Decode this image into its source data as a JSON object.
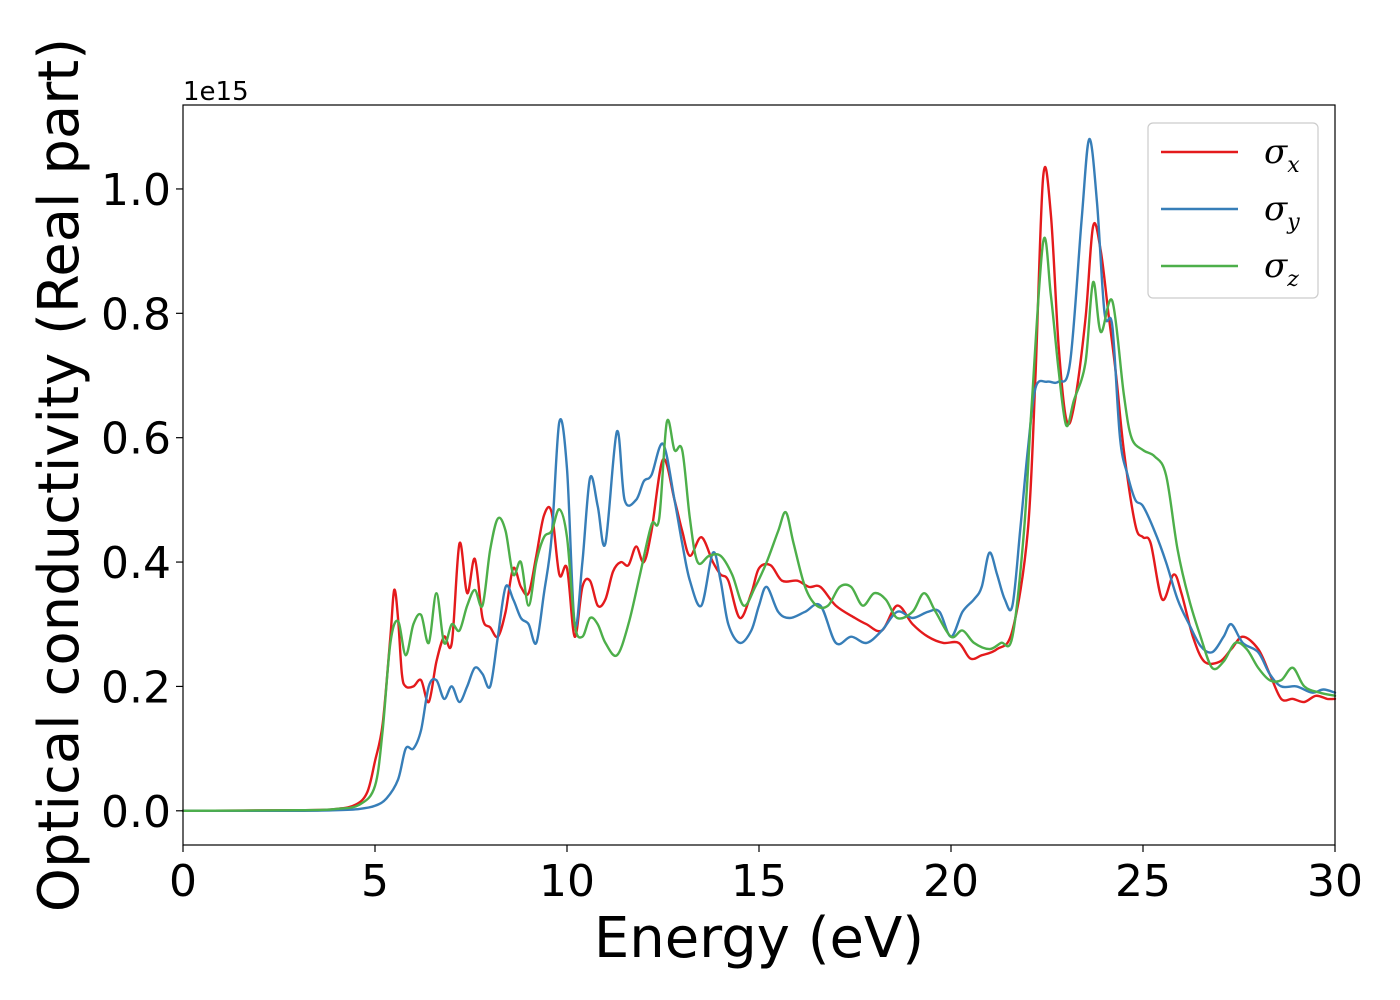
{
  "chart_data": {
    "type": "line",
    "title": "",
    "xlabel": "Energy (eV)",
    "ylabel": "Optical conductivity (Real part)",
    "offset_text": "1e15",
    "xlim": [
      0,
      30
    ],
    "ylim": [
      -0.055,
      1.135
    ],
    "xticks": [
      0,
      5,
      10,
      15,
      20,
      25,
      30
    ],
    "xtick_labels": [
      "0",
      "5",
      "10",
      "15",
      "20",
      "25",
      "30"
    ],
    "yticks": [
      0.0,
      0.2,
      0.4,
      0.6,
      0.8,
      1.0
    ],
    "ytick_labels": [
      "0.0",
      "0.2",
      "0.4",
      "0.6",
      "0.8",
      "1.0"
    ],
    "grid": false,
    "legend_position": "top-right",
    "series": [
      {
        "name": "σx",
        "symbol": "σ",
        "subscript": "x",
        "color": "#e41a1c",
        "points": [
          [
            0,
            0
          ],
          [
            3,
            0.001
          ],
          [
            4,
            0.003
          ],
          [
            4.5,
            0.01
          ],
          [
            4.8,
            0.03
          ],
          [
            5,
            0.08
          ],
          [
            5.2,
            0.14
          ],
          [
            5.4,
            0.28
          ],
          [
            5.5,
            0.355
          ],
          [
            5.6,
            0.31
          ],
          [
            5.7,
            0.22
          ],
          [
            5.8,
            0.2
          ],
          [
            6,
            0.2
          ],
          [
            6.2,
            0.21
          ],
          [
            6.4,
            0.175
          ],
          [
            6.6,
            0.24
          ],
          [
            6.8,
            0.28
          ],
          [
            7,
            0.27
          ],
          [
            7.2,
            0.43
          ],
          [
            7.4,
            0.35
          ],
          [
            7.6,
            0.405
          ],
          [
            7.8,
            0.31
          ],
          [
            8,
            0.295
          ],
          [
            8.2,
            0.28
          ],
          [
            8.4,
            0.32
          ],
          [
            8.6,
            0.39
          ],
          [
            8.8,
            0.36
          ],
          [
            9,
            0.35
          ],
          [
            9.2,
            0.41
          ],
          [
            9.4,
            0.475
          ],
          [
            9.6,
            0.48
          ],
          [
            9.8,
            0.38
          ],
          [
            10,
            0.39
          ],
          [
            10.2,
            0.28
          ],
          [
            10.4,
            0.36
          ],
          [
            10.6,
            0.37
          ],
          [
            10.8,
            0.33
          ],
          [
            11,
            0.34
          ],
          [
            11.2,
            0.385
          ],
          [
            11.4,
            0.4
          ],
          [
            11.6,
            0.395
          ],
          [
            11.8,
            0.425
          ],
          [
            12,
            0.4
          ],
          [
            12.2,
            0.45
          ],
          [
            12.5,
            0.565
          ],
          [
            12.8,
            0.5
          ],
          [
            13,
            0.45
          ],
          [
            13.2,
            0.41
          ],
          [
            13.5,
            0.44
          ],
          [
            13.8,
            0.4
          ],
          [
            14,
            0.38
          ],
          [
            14.2,
            0.37
          ],
          [
            14.5,
            0.31
          ],
          [
            14.8,
            0.35
          ],
          [
            15,
            0.39
          ],
          [
            15.3,
            0.395
          ],
          [
            15.6,
            0.37
          ],
          [
            16,
            0.37
          ],
          [
            16.3,
            0.36
          ],
          [
            16.6,
            0.36
          ],
          [
            17,
            0.33
          ],
          [
            17.5,
            0.31
          ],
          [
            17.8,
            0.3
          ],
          [
            18.2,
            0.29
          ],
          [
            18.6,
            0.33
          ],
          [
            19,
            0.3
          ],
          [
            19.4,
            0.28
          ],
          [
            19.8,
            0.27
          ],
          [
            20.2,
            0.27
          ],
          [
            20.5,
            0.245
          ],
          [
            20.8,
            0.25
          ],
          [
            21.2,
            0.26
          ],
          [
            21.6,
            0.29
          ],
          [
            22,
            0.45
          ],
          [
            22.2,
            0.7
          ],
          [
            22.4,
            1.02
          ],
          [
            22.6,
            0.96
          ],
          [
            22.8,
            0.75
          ],
          [
            23,
            0.63
          ],
          [
            23.2,
            0.65
          ],
          [
            23.5,
            0.79
          ],
          [
            23.7,
            0.94
          ],
          [
            23.9,
            0.9
          ],
          [
            24.1,
            0.8
          ],
          [
            24.3,
            0.7
          ],
          [
            24.5,
            0.58
          ],
          [
            24.8,
            0.46
          ],
          [
            25,
            0.44
          ],
          [
            25.2,
            0.43
          ],
          [
            25.5,
            0.34
          ],
          [
            25.8,
            0.38
          ],
          [
            26,
            0.35
          ],
          [
            26.3,
            0.28
          ],
          [
            26.6,
            0.24
          ],
          [
            27,
            0.24
          ],
          [
            27.3,
            0.26
          ],
          [
            27.6,
            0.28
          ],
          [
            28,
            0.26
          ],
          [
            28.3,
            0.22
          ],
          [
            28.6,
            0.18
          ],
          [
            28.9,
            0.18
          ],
          [
            29.2,
            0.175
          ],
          [
            29.5,
            0.185
          ],
          [
            29.8,
            0.18
          ],
          [
            30,
            0.18
          ]
        ]
      },
      {
        "name": "σy",
        "symbol": "σ",
        "subscript": "y",
        "color": "#377eb8",
        "points": [
          [
            0,
            0
          ],
          [
            3,
            0
          ],
          [
            4,
            0.001
          ],
          [
            4.6,
            0.003
          ],
          [
            5,
            0.008
          ],
          [
            5.3,
            0.02
          ],
          [
            5.6,
            0.05
          ],
          [
            5.8,
            0.1
          ],
          [
            6,
            0.1
          ],
          [
            6.2,
            0.13
          ],
          [
            6.4,
            0.2
          ],
          [
            6.6,
            0.21
          ],
          [
            6.8,
            0.18
          ],
          [
            7,
            0.2
          ],
          [
            7.2,
            0.175
          ],
          [
            7.4,
            0.2
          ],
          [
            7.6,
            0.23
          ],
          [
            7.8,
            0.22
          ],
          [
            8,
            0.2
          ],
          [
            8.2,
            0.28
          ],
          [
            8.4,
            0.36
          ],
          [
            8.6,
            0.34
          ],
          [
            8.8,
            0.31
          ],
          [
            9,
            0.3
          ],
          [
            9.2,
            0.27
          ],
          [
            9.4,
            0.35
          ],
          [
            9.6,
            0.44
          ],
          [
            9.8,
            0.625
          ],
          [
            10,
            0.55
          ],
          [
            10.2,
            0.3
          ],
          [
            10.4,
            0.4
          ],
          [
            10.6,
            0.535
          ],
          [
            10.8,
            0.49
          ],
          [
            11,
            0.43
          ],
          [
            11.3,
            0.61
          ],
          [
            11.5,
            0.5
          ],
          [
            11.8,
            0.5
          ],
          [
            12,
            0.53
          ],
          [
            12.2,
            0.54
          ],
          [
            12.5,
            0.59
          ],
          [
            12.8,
            0.5
          ],
          [
            13,
            0.43
          ],
          [
            13.2,
            0.37
          ],
          [
            13.5,
            0.33
          ],
          [
            13.8,
            0.415
          ],
          [
            14,
            0.37
          ],
          [
            14.2,
            0.3
          ],
          [
            14.5,
            0.27
          ],
          [
            14.8,
            0.29
          ],
          [
            15,
            0.33
          ],
          [
            15.2,
            0.36
          ],
          [
            15.5,
            0.32
          ],
          [
            15.8,
            0.31
          ],
          [
            16.2,
            0.32
          ],
          [
            16.6,
            0.33
          ],
          [
            17,
            0.27
          ],
          [
            17.4,
            0.28
          ],
          [
            17.8,
            0.27
          ],
          [
            18.2,
            0.29
          ],
          [
            18.6,
            0.32
          ],
          [
            19,
            0.31
          ],
          [
            19.4,
            0.32
          ],
          [
            19.7,
            0.32
          ],
          [
            20,
            0.28
          ],
          [
            20.3,
            0.32
          ],
          [
            20.6,
            0.34
          ],
          [
            20.8,
            0.36
          ],
          [
            21,
            0.415
          ],
          [
            21.2,
            0.38
          ],
          [
            21.4,
            0.34
          ],
          [
            21.6,
            0.33
          ],
          [
            21.8,
            0.45
          ],
          [
            22,
            0.58
          ],
          [
            22.2,
            0.68
          ],
          [
            22.5,
            0.69
          ],
          [
            22.8,
            0.69
          ],
          [
            23.1,
            0.72
          ],
          [
            23.4,
            0.95
          ],
          [
            23.6,
            1.08
          ],
          [
            23.8,
            0.98
          ],
          [
            24,
            0.8
          ],
          [
            24.2,
            0.78
          ],
          [
            24.4,
            0.6
          ],
          [
            24.6,
            0.54
          ],
          [
            24.8,
            0.5
          ],
          [
            25,
            0.49
          ],
          [
            25.3,
            0.45
          ],
          [
            25.6,
            0.4
          ],
          [
            25.9,
            0.34
          ],
          [
            26.2,
            0.3
          ],
          [
            26.5,
            0.265
          ],
          [
            26.8,
            0.255
          ],
          [
            27.1,
            0.28
          ],
          [
            27.3,
            0.3
          ],
          [
            27.6,
            0.27
          ],
          [
            28,
            0.255
          ],
          [
            28.3,
            0.22
          ],
          [
            28.6,
            0.2
          ],
          [
            29,
            0.2
          ],
          [
            29.4,
            0.19
          ],
          [
            29.7,
            0.195
          ],
          [
            30,
            0.19
          ]
        ]
      },
      {
        "name": "σz",
        "symbol": "σ",
        "subscript": "z",
        "color": "#4daf4a",
        "points": [
          [
            0,
            0
          ],
          [
            3,
            0.001
          ],
          [
            4,
            0.003
          ],
          [
            4.6,
            0.01
          ],
          [
            5,
            0.04
          ],
          [
            5.2,
            0.13
          ],
          [
            5.4,
            0.27
          ],
          [
            5.6,
            0.305
          ],
          [
            5.8,
            0.25
          ],
          [
            6,
            0.3
          ],
          [
            6.2,
            0.315
          ],
          [
            6.4,
            0.27
          ],
          [
            6.6,
            0.35
          ],
          [
            6.8,
            0.27
          ],
          [
            7,
            0.3
          ],
          [
            7.2,
            0.29
          ],
          [
            7.4,
            0.33
          ],
          [
            7.6,
            0.355
          ],
          [
            7.8,
            0.33
          ],
          [
            8,
            0.42
          ],
          [
            8.2,
            0.47
          ],
          [
            8.4,
            0.45
          ],
          [
            8.6,
            0.38
          ],
          [
            8.8,
            0.4
          ],
          [
            9,
            0.33
          ],
          [
            9.2,
            0.4
          ],
          [
            9.4,
            0.44
          ],
          [
            9.6,
            0.45
          ],
          [
            9.8,
            0.485
          ],
          [
            10,
            0.44
          ],
          [
            10.2,
            0.3
          ],
          [
            10.4,
            0.28
          ],
          [
            10.6,
            0.31
          ],
          [
            10.8,
            0.3
          ],
          [
            11,
            0.27
          ],
          [
            11.3,
            0.25
          ],
          [
            11.6,
            0.3
          ],
          [
            11.9,
            0.38
          ],
          [
            12.2,
            0.46
          ],
          [
            12.4,
            0.47
          ],
          [
            12.6,
            0.625
          ],
          [
            12.8,
            0.58
          ],
          [
            13,
            0.58
          ],
          [
            13.2,
            0.47
          ],
          [
            13.4,
            0.4
          ],
          [
            13.7,
            0.41
          ],
          [
            14,
            0.41
          ],
          [
            14.3,
            0.38
          ],
          [
            14.6,
            0.33
          ],
          [
            14.9,
            0.36
          ],
          [
            15.2,
            0.4
          ],
          [
            15.5,
            0.45
          ],
          [
            15.7,
            0.48
          ],
          [
            15.9,
            0.43
          ],
          [
            16.2,
            0.36
          ],
          [
            16.5,
            0.33
          ],
          [
            16.8,
            0.33
          ],
          [
            17.1,
            0.36
          ],
          [
            17.4,
            0.36
          ],
          [
            17.7,
            0.33
          ],
          [
            18,
            0.35
          ],
          [
            18.3,
            0.34
          ],
          [
            18.6,
            0.31
          ],
          [
            19,
            0.32
          ],
          [
            19.3,
            0.35
          ],
          [
            19.6,
            0.32
          ],
          [
            20,
            0.28
          ],
          [
            20.3,
            0.29
          ],
          [
            20.6,
            0.27
          ],
          [
            21,
            0.26
          ],
          [
            21.3,
            0.27
          ],
          [
            21.6,
            0.28
          ],
          [
            21.9,
            0.45
          ],
          [
            22.1,
            0.65
          ],
          [
            22.4,
            0.915
          ],
          [
            22.6,
            0.83
          ],
          [
            22.8,
            0.71
          ],
          [
            23,
            0.62
          ],
          [
            23.2,
            0.66
          ],
          [
            23.5,
            0.72
          ],
          [
            23.7,
            0.85
          ],
          [
            23.9,
            0.77
          ],
          [
            24.2,
            0.82
          ],
          [
            24.5,
            0.67
          ],
          [
            24.7,
            0.6
          ],
          [
            25,
            0.58
          ],
          [
            25.3,
            0.57
          ],
          [
            25.6,
            0.54
          ],
          [
            25.9,
            0.42
          ],
          [
            26.2,
            0.34
          ],
          [
            26.5,
            0.28
          ],
          [
            26.8,
            0.23
          ],
          [
            27.1,
            0.24
          ],
          [
            27.4,
            0.27
          ],
          [
            27.7,
            0.26
          ],
          [
            28,
            0.23
          ],
          [
            28.3,
            0.21
          ],
          [
            28.6,
            0.21
          ],
          [
            28.9,
            0.23
          ],
          [
            29.2,
            0.2
          ],
          [
            29.6,
            0.19
          ],
          [
            30,
            0.185
          ]
        ]
      }
    ]
  }
}
